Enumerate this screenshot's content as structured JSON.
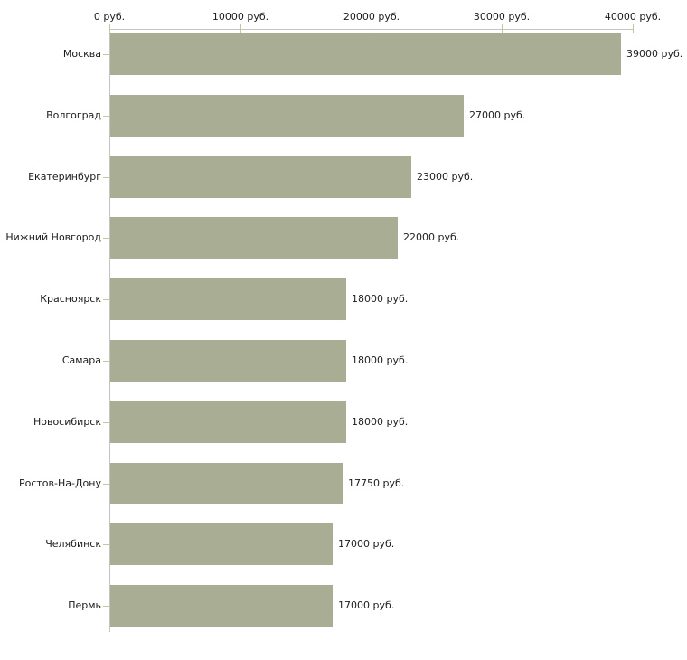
{
  "chart_data": {
    "type": "bar",
    "orientation": "horizontal",
    "title": "",
    "xlabel": "",
    "ylabel": "",
    "unit": "руб.",
    "categories": [
      "Москва",
      "Волгоград",
      "Екатеринбург",
      "Нижний Новгород",
      "Красноярск",
      "Самара",
      "Новосибирск",
      "Ростов-На-Дону",
      "Челябинск",
      "Пермь"
    ],
    "values": [
      39000,
      27000,
      23000,
      22000,
      18000,
      18000,
      18000,
      17750,
      17000,
      17000
    ],
    "value_labels": [
      "39000 руб.",
      "27000 руб.",
      "23000 руб.",
      "22000 руб.",
      "18000 руб.",
      "18000 руб.",
      "18000 руб.",
      "17750 руб.",
      "17000 руб.",
      "17000 руб."
    ],
    "x_axis": {
      "position": "top",
      "min": 0,
      "max": 40000,
      "ticks": [
        0,
        10000,
        20000,
        30000,
        40000
      ],
      "tick_labels": [
        "0 руб.",
        "10000 руб.",
        "20000 руб.",
        "30000 руб.",
        "40000 руб."
      ]
    },
    "grid": false,
    "legend": false,
    "colors": {
      "bar": "#a9ad93",
      "axis_line": "#c4c4c4",
      "tick": "#c6c69e",
      "text": "#1c1c1c",
      "background": "#ffffff"
    }
  }
}
